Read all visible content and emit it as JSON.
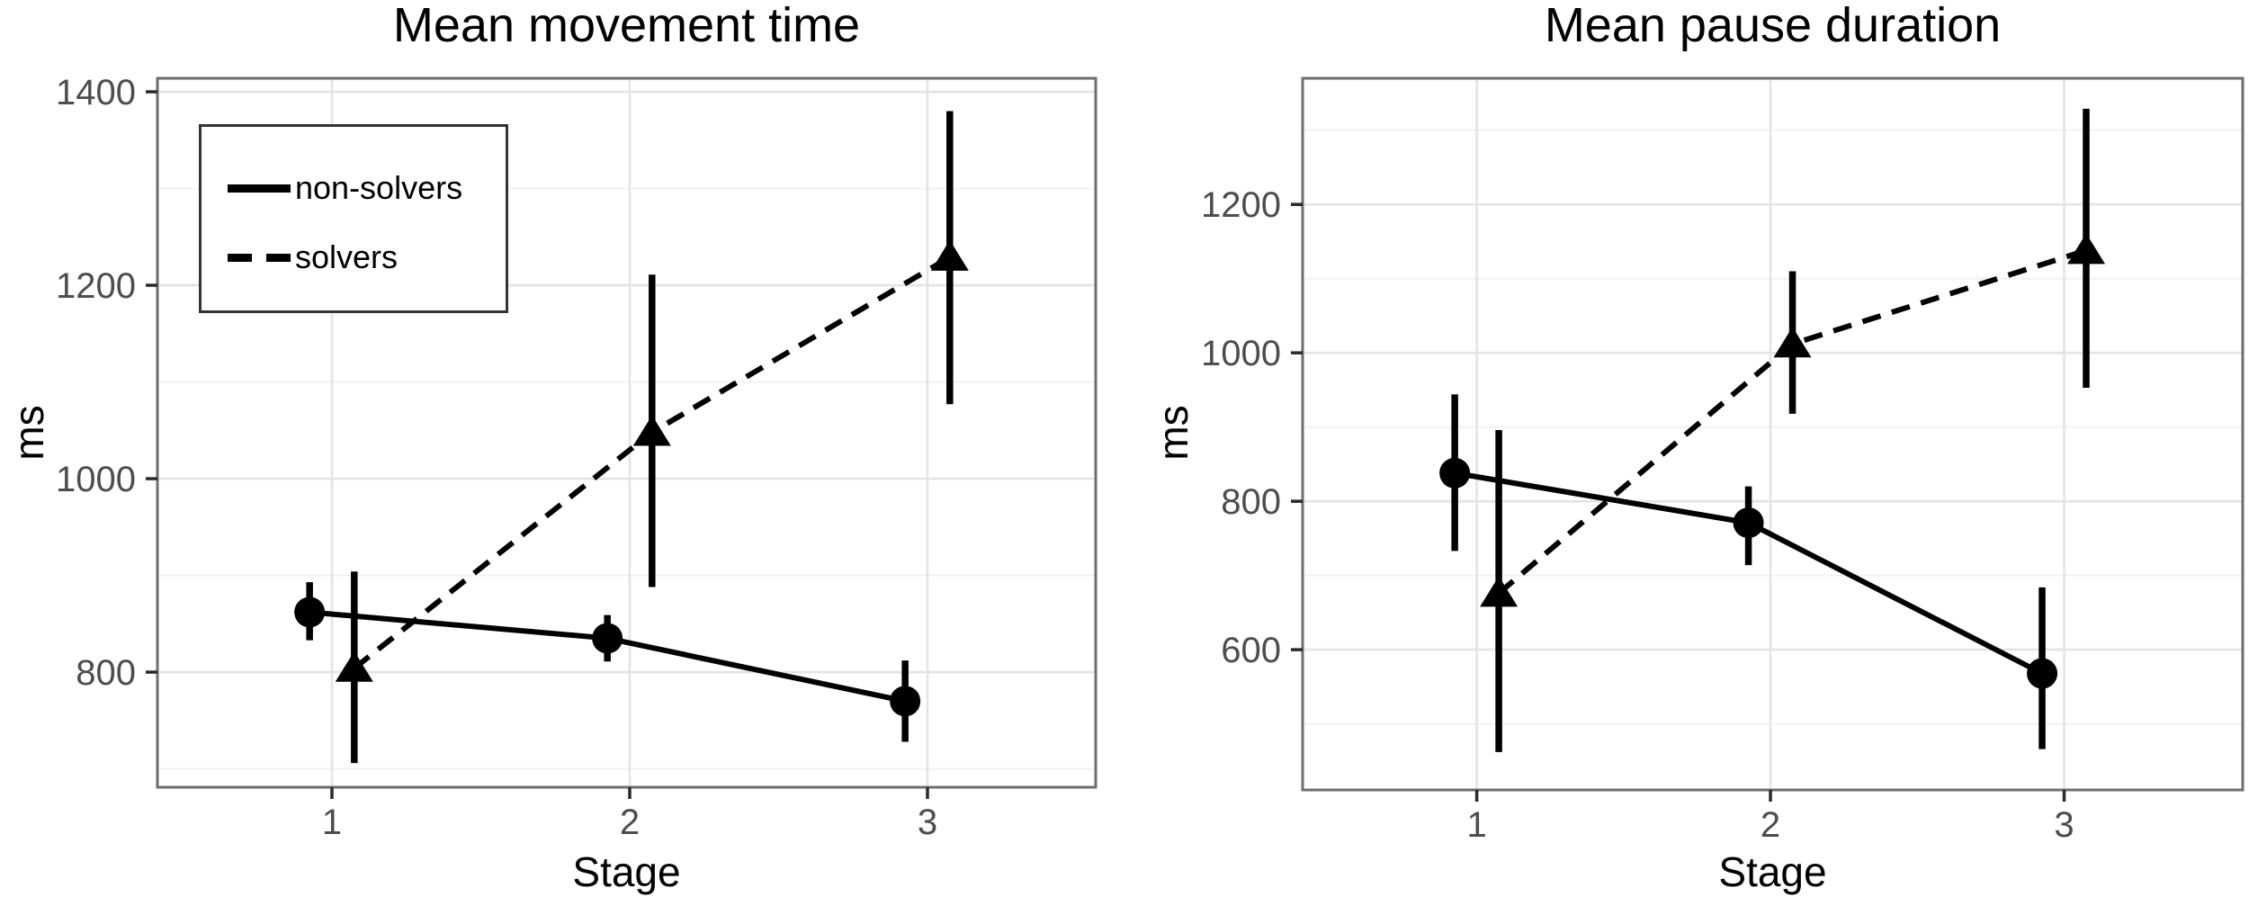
{
  "figure": {
    "background": "#ffffff",
    "x_axis_label": "Stage",
    "y_axis_label": "ms"
  },
  "colors": {
    "series": "#000000",
    "grid_major": "#e4e4e4",
    "grid_minor": "#f0f0f0",
    "panel_border": "#6e6e6e",
    "tick_mark": "#2a2a2a",
    "tick_label": "#4d4d4d",
    "legend_border": "#333333"
  },
  "legend": {
    "position": "top-left-of-first-panel",
    "items": [
      {
        "label": "non-solvers",
        "line_style": "solid"
      },
      {
        "label": "solvers",
        "line_style": "dashed"
      }
    ]
  },
  "chart_data": [
    {
      "type": "line",
      "title": "Mean movement time",
      "xlabel": "Stage",
      "ylabel": "ms",
      "categories": [
        1,
        2,
        3
      ],
      "xticks": [
        1,
        2,
        3
      ],
      "xtick_labels": [
        "1",
        "2",
        "3"
      ],
      "xlim": [
        0.414,
        3.565
      ],
      "ylim": [
        681,
        1414
      ],
      "yticks": [
        800,
        1000,
        1200,
        1400
      ],
      "ytick_labels": [
        "800",
        "1000",
        "1200",
        "1400"
      ],
      "yminor": [
        700,
        900,
        1100,
        1300
      ],
      "grid": true,
      "legend_visible": true,
      "series": [
        {
          "name": "non-solvers",
          "marker": "circle",
          "line": "solid",
          "dodge": -0.075,
          "values": [
            862,
            835,
            770
          ],
          "err_lo": [
            833,
            811,
            728
          ],
          "err_hi": [
            893,
            859,
            812
          ]
        },
        {
          "name": "solvers",
          "marker": "triangle",
          "line": "dashed",
          "dodge": 0.075,
          "values": [
            804,
            1048,
            1229
          ],
          "err_lo": [
            706,
            888,
            1077
          ],
          "err_hi": [
            904,
            1211,
            1380
          ]
        }
      ]
    },
    {
      "type": "line",
      "title": "Mean pause duration",
      "xlabel": "Stage",
      "ylabel": "ms",
      "categories": [
        1,
        2,
        3
      ],
      "xticks": [
        1,
        2,
        3
      ],
      "xtick_labels": [
        "1",
        "2",
        "3"
      ],
      "xlim": [
        0.407,
        3.608
      ],
      "ylim": [
        411,
        1370
      ],
      "yticks": [
        600,
        800,
        1000,
        1200
      ],
      "ytick_labels": [
        "600",
        "800",
        "1000",
        "1200"
      ],
      "yminor": [
        500,
        700,
        900,
        1100,
        1300
      ],
      "grid": true,
      "legend_visible": false,
      "series": [
        {
          "name": "non-solvers",
          "marker": "circle",
          "line": "solid",
          "dodge": -0.075,
          "values": [
            838,
            771,
            568
          ],
          "err_lo": [
            733,
            714,
            466
          ],
          "err_hi": [
            944,
            820,
            684
          ]
        },
        {
          "name": "solvers",
          "marker": "triangle",
          "line": "dashed",
          "dodge": 0.075,
          "values": [
            676,
            1012,
            1138
          ],
          "err_lo": [
            462,
            918,
            953
          ],
          "err_hi": [
            896,
            1110,
            1329
          ]
        }
      ]
    }
  ]
}
